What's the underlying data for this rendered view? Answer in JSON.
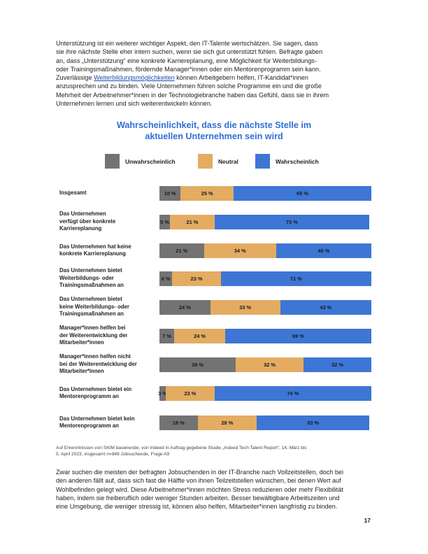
{
  "intro_paragraph": {
    "lines": [
      "Unterstützung ist ein weiterer wichtiger Aspekt, den IT-Talente wertschätzen. Sie sagen, dass",
      "sie ihre nächste Stelle eher intern suchen, wenn sie sich gut unterstützt fühlen. Befragte gaben",
      "an, dass „Unterstützung“ eine konkrete Karriereplanung, eine Möglichkeit für Weiterbildungs-",
      "oder Trainingsmaßnahmen, fördernde Manager*innen oder ein Mentorenprogramm sein kann."
    ],
    "line5_before": "Zuverlässige ",
    "link_text": "Weiterbildungsmöglichkeiten",
    "line5_after": " können Arbeitgebern helfen, IT-Kandidat*innen",
    "lines_after": [
      "anzusprechen und zu binden. Viele Unternehmen führen solche Programme ein und die große",
      "Mehrheit der Arbeitnehmer*innen in der Technologiebranche haben das Gefühl, dass sie in ihrem",
      "Unternehmen lernen und sich weiterentwickeln können."
    ]
  },
  "chart_data": {
    "type": "bar",
    "stacked": "100%",
    "orientation": "horizontal",
    "title_lines": [
      "Wahrscheinlichkeit, dass die nächste Stelle im",
      "aktuellen Unternehmen sein wird"
    ],
    "legend_placement": "top",
    "categories": [
      [
        "Insgesamt"
      ],
      [
        "Das Unternehmen",
        "verfügt über konkrete",
        "Karriereplanung"
      ],
      [
        "Das Unternehmen hat keine",
        "konkrete Karriereplanung"
      ],
      [
        "Das Unternehmen bietet",
        "Weiterbildungs- oder",
        "Trainingsmaßnahmen an"
      ],
      [
        "Das Unternehmen bietet",
        "keine Weiterbildungs- oder",
        "Trainingsmaßnahmen an"
      ],
      [
        "Manager*innen helfen bei",
        "der Weiterentwicklung der",
        "Mitarbeiter*innen"
      ],
      [
        "Manager*innen helfen nicht",
        "bei der Weiterentwicklung der",
        "Mitarbeiter*innen"
      ],
      [
        "Das Unternehmen bietet ein",
        "Mentorenprogramm an"
      ],
      [
        "Das Unternehmen bietet kein",
        "Mentorenprogramm an"
      ]
    ],
    "series": [
      {
        "name": "Unwahrscheinlich",
        "color": "#737373",
        "values": [
          10,
          5,
          21,
          6,
          24,
          7,
          36,
          3,
          18
        ]
      },
      {
        "name": "Neutral",
        "color": "#e3ac62",
        "values": [
          25,
          21,
          34,
          23,
          33,
          24,
          32,
          23,
          28
        ]
      },
      {
        "name": "Wahrscheinlich",
        "color": "#3d76d5",
        "values": [
          65,
          73,
          45,
          71,
          43,
          69,
          32,
          74,
          53
        ]
      }
    ],
    "value_suffix": " %",
    "xlim": [
      0,
      100
    ]
  },
  "source_note": {
    "lines": [
      "Auf Erkenntnissen von SKIM basierende, von Indeed in Auftrag gegebene Studie „Indeed Tech Talent Report“, 14. März bis",
      "5. April 2023, insgesamt n=949 Jobsuchende, Frage A9"
    ]
  },
  "closing_paragraph": {
    "lines": [
      "Zwar suchen die meisten der befragten Jobsuchenden in der IT-Branche nach Vollzeitstellen, doch bei",
      "den anderen fällt auf, dass sich fast die Hälfte von ihnen Teilzeitstellen wünschen, bei denen Wert auf",
      "Wohlbefinden gelegt wird. Diese Arbeitnehmer*innen möchten Stress reduzieren oder mehr Flexibilität",
      "haben, indem sie freiberuflich oder weniger Stunden arbeiten. Besser bewältigbare Arbeitszeiten und",
      "eine Umgebung, die weniger stressig ist, können also helfen, Mitarbeiter*innen langfristig zu binden."
    ]
  },
  "page_number": "17"
}
